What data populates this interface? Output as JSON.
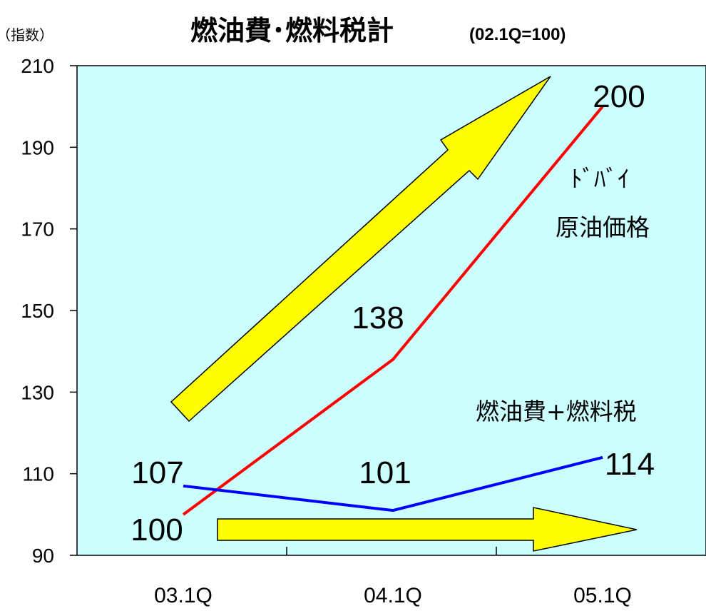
{
  "chart_data": {
    "type": "line",
    "title": "燃油費･燃料税計",
    "subtitle": "(02.1Q=100)",
    "ylabel": "（指数）",
    "categories": [
      "03.1Q",
      "04.1Q",
      "05.1Q"
    ],
    "ylim": [
      90,
      210
    ],
    "yticks": [
      90,
      110,
      130,
      150,
      170,
      190,
      210
    ],
    "grid": false,
    "series": [
      {
        "name": "ﾄﾞﾊﾞｲ 原油価格",
        "name_lines": [
          "ﾄﾞﾊﾞｲ",
          "原油価格"
        ],
        "values": [
          100,
          138,
          200
        ],
        "labels": [
          "100",
          "138",
          "200"
        ],
        "color": "#ff0000"
      },
      {
        "name": "燃油費+燃料税",
        "name_lines": [
          "燃油費+燃料税"
        ],
        "values": [
          107,
          101,
          114
        ],
        "labels": [
          "107",
          "101",
          "114"
        ],
        "color": "#0000ff"
      }
    ],
    "arrows": {
      "color": "#ffff00",
      "meaning": [
        "upward",
        "flat"
      ]
    },
    "plot_background": "#ccffff"
  }
}
